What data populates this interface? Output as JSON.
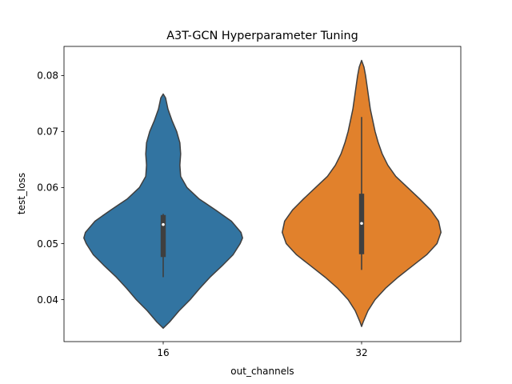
{
  "chart_data": {
    "type": "violin",
    "title": "A3T-GCN Hyperparameter Tuning",
    "xlabel": "out_channels",
    "ylabel": "test_loss",
    "categories": [
      "16",
      "32"
    ],
    "ylim": [
      0.0325,
      0.0852
    ],
    "yticks": [
      0.04,
      0.05,
      0.06,
      0.07,
      0.08
    ],
    "ytick_labels": [
      "0.04",
      "0.05",
      "0.06",
      "0.07",
      "0.08"
    ],
    "grid": false,
    "legend": "none",
    "series": [
      {
        "category": "16",
        "color": "#3274a1",
        "range": [
          0.0349,
          0.0767
        ],
        "whisker": [
          0.044,
          0.0553
        ],
        "quartiles": [
          0.0476,
          0.0551
        ],
        "median": 0.0534,
        "density": [
          [
            0.0349,
            0.0
          ],
          [
            0.036,
            0.08
          ],
          [
            0.038,
            0.2
          ],
          [
            0.04,
            0.34
          ],
          [
            0.042,
            0.46
          ],
          [
            0.044,
            0.59
          ],
          [
            0.046,
            0.74
          ],
          [
            0.048,
            0.88
          ],
          [
            0.05,
            0.97
          ],
          [
            0.051,
            1.0
          ],
          [
            0.052,
            0.98
          ],
          [
            0.054,
            0.86
          ],
          [
            0.056,
            0.66
          ],
          [
            0.058,
            0.45
          ],
          [
            0.06,
            0.3
          ],
          [
            0.062,
            0.22
          ],
          [
            0.064,
            0.21
          ],
          [
            0.066,
            0.22
          ],
          [
            0.068,
            0.21
          ],
          [
            0.07,
            0.17
          ],
          [
            0.072,
            0.11
          ],
          [
            0.074,
            0.06
          ],
          [
            0.076,
            0.03
          ],
          [
            0.0767,
            0.0
          ]
        ]
      },
      {
        "category": "32",
        "color": "#e1812c",
        "range": [
          0.0352,
          0.0827
        ],
        "whisker": [
          0.0453,
          0.0726
        ],
        "quartiles": [
          0.0481,
          0.0589
        ],
        "median": 0.0536,
        "density": [
          [
            0.0352,
            0.0
          ],
          [
            0.036,
            0.02
          ],
          [
            0.038,
            0.08
          ],
          [
            0.04,
            0.17
          ],
          [
            0.042,
            0.3
          ],
          [
            0.044,
            0.46
          ],
          [
            0.046,
            0.64
          ],
          [
            0.048,
            0.82
          ],
          [
            0.05,
            0.95
          ],
          [
            0.052,
            1.0
          ],
          [
            0.054,
            0.97
          ],
          [
            0.056,
            0.87
          ],
          [
            0.058,
            0.73
          ],
          [
            0.06,
            0.58
          ],
          [
            0.062,
            0.43
          ],
          [
            0.064,
            0.33
          ],
          [
            0.066,
            0.26
          ],
          [
            0.068,
            0.21
          ],
          [
            0.07,
            0.17
          ],
          [
            0.072,
            0.14
          ],
          [
            0.074,
            0.11
          ],
          [
            0.076,
            0.09
          ],
          [
            0.078,
            0.07
          ],
          [
            0.08,
            0.05
          ],
          [
            0.0815,
            0.03
          ],
          [
            0.0827,
            0.0
          ]
        ]
      }
    ]
  }
}
